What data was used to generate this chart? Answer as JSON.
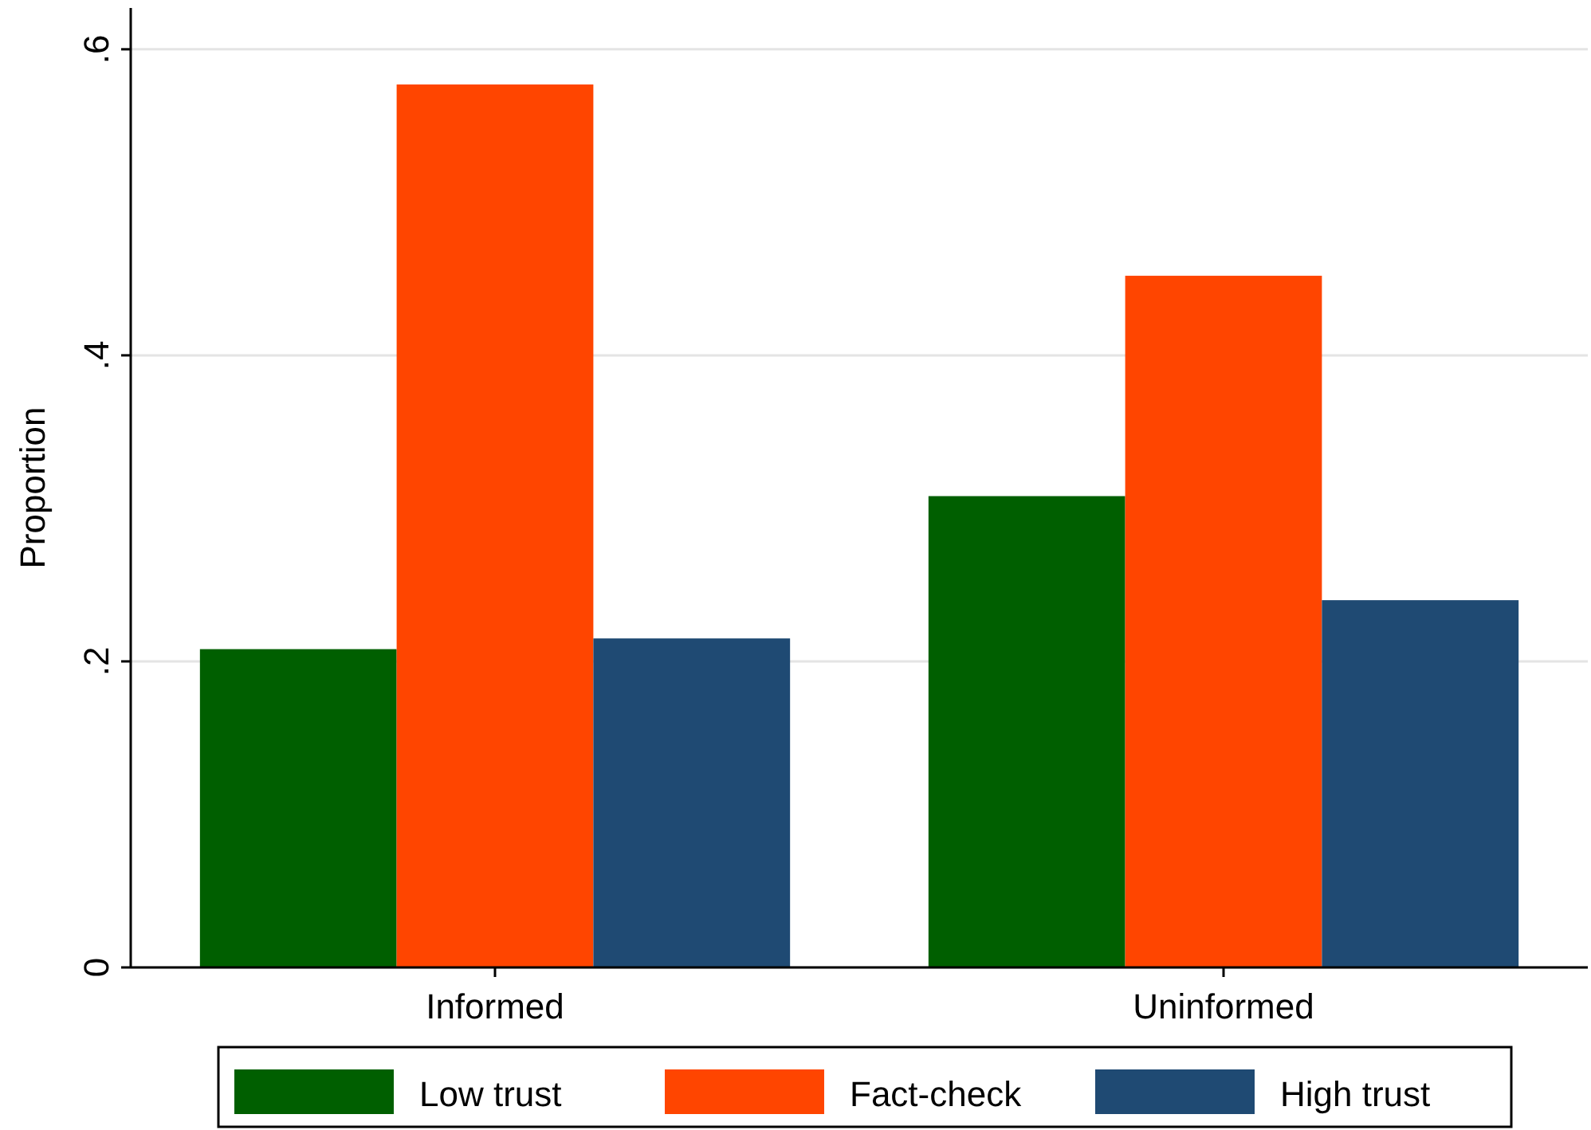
{
  "chart_data": {
    "type": "bar",
    "ylabel": "Proportion",
    "categories": [
      "Informed",
      "Uninformed"
    ],
    "series": [
      {
        "name": "Low trust",
        "color": "#005f00",
        "values": [
          0.208,
          0.308
        ]
      },
      {
        "name": "Fact-check",
        "color": "#ff4500",
        "values": [
          0.577,
          0.452
        ]
      },
      {
        "name": "High trust",
        "color": "#1f4a73",
        "values": [
          0.215,
          0.24
        ]
      }
    ],
    "ylim": [
      0,
      0.627
    ],
    "yticks": [
      {
        "value": 0,
        "label": "0"
      },
      {
        "value": 0.2,
        "label": ".2"
      },
      {
        "value": 0.4,
        "label": ".4"
      },
      {
        "value": 0.6,
        "label": ".6"
      }
    ],
    "grid": "y",
    "legend": "bottom"
  }
}
